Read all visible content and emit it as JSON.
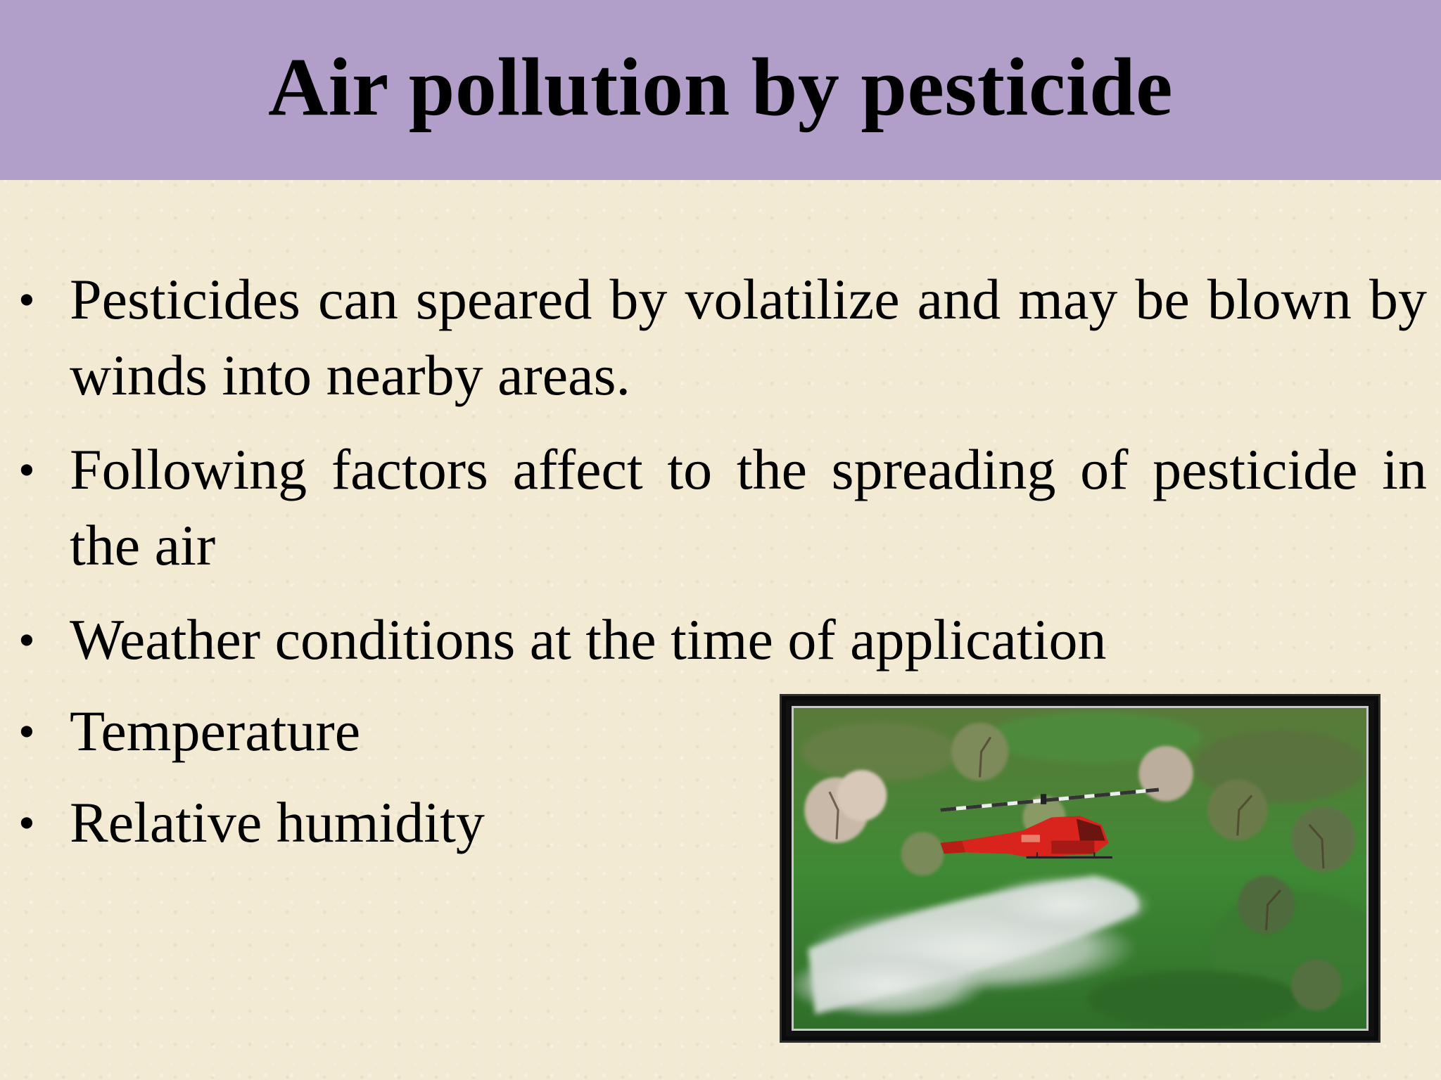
{
  "slide": {
    "title": "Air pollution by pesticide",
    "bullets": [
      "Pesticides can speared by volatilize and may be blown by winds into nearby areas.",
      "Following factors affect to the spreading of pesticide in the air",
      "Weather conditions at the time of application",
      "Temperature",
      "Relative humidity"
    ],
    "bullet_glyph": "•"
  },
  "colors": {
    "title_bar": "#b19fc9",
    "background": "#f2ead3",
    "text": "#000000"
  },
  "photo": {
    "subject": "red helicopter spraying pesticide over orchard",
    "icon": "helicopter-spraying-photo"
  }
}
